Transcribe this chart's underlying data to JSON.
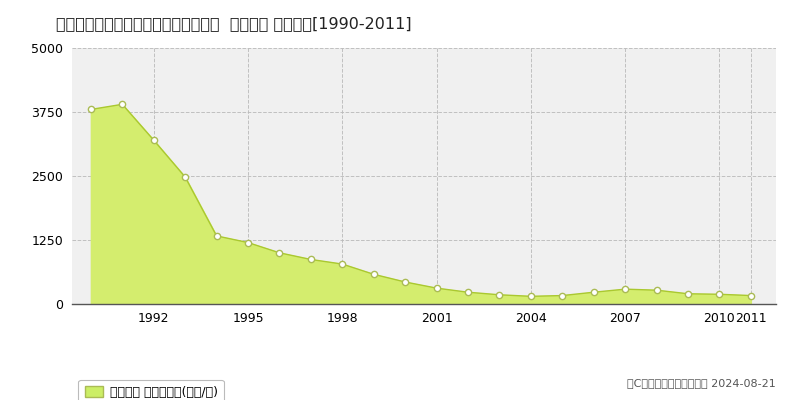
{
  "title": "大阪府大阪市中央区本町橋３６番１外  地価公示 地価推移[1990-2011]",
  "years": [
    1990,
    1991,
    1992,
    1993,
    1994,
    1995,
    1996,
    1997,
    1998,
    1999,
    2000,
    2001,
    2002,
    2003,
    2004,
    2005,
    2006,
    2007,
    2008,
    2009,
    2010,
    2011
  ],
  "values": [
    3800,
    3900,
    3200,
    2480,
    1330,
    1200,
    1000,
    870,
    780,
    580,
    430,
    310,
    230,
    180,
    150,
    165,
    230,
    290,
    270,
    200,
    190,
    165
  ],
  "ylim": [
    0,
    5000
  ],
  "yticks": [
    0,
    1250,
    2500,
    3750,
    5000
  ],
  "xtick_positions": [
    1992,
    1995,
    1998,
    2001,
    2004,
    2007,
    2010,
    2011
  ],
  "xlim": [
    1989.4,
    2011.8
  ],
  "fill_color": "#d4ed6e",
  "line_color": "#aac830",
  "marker_facecolor": "#ffffff",
  "marker_edgecolor": "#aabb55",
  "bg_color": "#ffffff",
  "plot_bg_color": "#f0f0f0",
  "grid_color": "#bbbbbb",
  "legend_label": "地価公示 平均嵪単価(万円/嵪)",
  "legend_color": "#ccee66",
  "legend_edge_color": "#aabb55",
  "copyright_text": "（C）土地価格ドットコム 2024-08-21",
  "title_fontsize": 11.5,
  "tick_fontsize": 9,
  "legend_fontsize": 9,
  "copyright_fontsize": 8
}
